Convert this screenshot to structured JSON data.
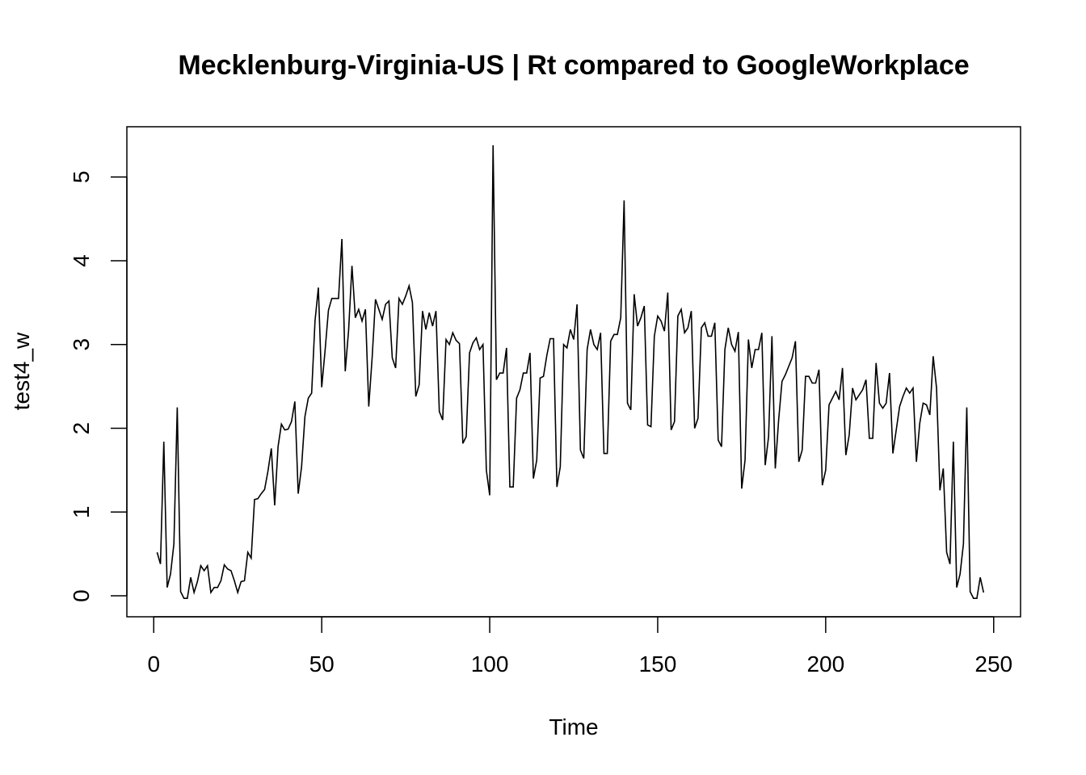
{
  "chart_data": {
    "type": "line",
    "title": "Mecklenburg-Virginia-US | Rt compared to GoogleWorkplace",
    "xlabel": "Time",
    "ylabel": "test4_w",
    "xlim": [
      -8,
      258
    ],
    "ylim": [
      -0.25,
      5.6
    ],
    "x_ticks": [
      0,
      50,
      100,
      150,
      200,
      250
    ],
    "y_ticks": [
      0,
      1,
      2,
      3,
      4,
      5
    ],
    "x_tick_labels": [
      "0",
      "50",
      "100",
      "150",
      "200",
      "250"
    ],
    "y_tick_labels": [
      "0",
      "1",
      "2",
      "3",
      "4",
      "5"
    ],
    "grid": false,
    "legend": "none",
    "line_color": "#000000",
    "series": [
      {
        "x_start": 1,
        "values": [
          0.52,
          0.38,
          1.84,
          0.1,
          0.26,
          0.62,
          2.25,
          0.05,
          -0.03,
          -0.03,
          0.22,
          0.04,
          0.17,
          0.36,
          0.3,
          0.36,
          0.04,
          0.1,
          0.1,
          0.18,
          0.37,
          0.32,
          0.3,
          0.18,
          0.04,
          0.17,
          0.18,
          0.52,
          0.45,
          1.15,
          1.16,
          1.22,
          1.27,
          1.49,
          1.76,
          1.08,
          1.78,
          2.05,
          1.98,
          1.99,
          2.08,
          2.32,
          1.22,
          1.54,
          2.14,
          2.36,
          2.42,
          3.28,
          3.68,
          2.49,
          2.93,
          3.41,
          3.55,
          3.55,
          3.55,
          4.26,
          2.68,
          3.17,
          3.94,
          3.32,
          3.42,
          3.28,
          3.42,
          2.26,
          2.84,
          3.54,
          3.42,
          3.3,
          3.48,
          3.52,
          2.84,
          2.72,
          3.55,
          3.48,
          3.58,
          3.7,
          3.5,
          2.38,
          2.52,
          3.4,
          3.18,
          3.38,
          3.22,
          3.4,
          2.2,
          2.1,
          3.06,
          3.0,
          3.14,
          3.05,
          3.01,
          1.82,
          1.9,
          2.9,
          3.02,
          3.08,
          2.94,
          3.0,
          1.5,
          1.2,
          5.38,
          2.58,
          2.66,
          2.66,
          2.96,
          1.3,
          1.3,
          2.36,
          2.46,
          2.66,
          2.66,
          2.9,
          1.4,
          1.62,
          2.6,
          2.62,
          2.87,
          3.07,
          3.07,
          1.3,
          1.54,
          3.0,
          2.96,
          3.18,
          3.06,
          3.48,
          1.74,
          1.64,
          2.94,
          3.18,
          3.0,
          2.94,
          3.14,
          1.7,
          1.7,
          3.04,
          3.12,
          3.12,
          3.32,
          4.72,
          2.3,
          2.22,
          3.6,
          3.22,
          3.32,
          3.46,
          2.04,
          2.02,
          3.1,
          3.34,
          3.28,
          3.16,
          3.62,
          1.98,
          2.08,
          3.34,
          3.42,
          3.14,
          3.2,
          3.4,
          2.0,
          2.12,
          3.2,
          3.26,
          3.1,
          3.1,
          3.26,
          1.86,
          1.78,
          2.94,
          3.2,
          3.0,
          2.92,
          3.15,
          1.28,
          1.62,
          3.06,
          2.72,
          2.94,
          2.94,
          3.14,
          1.56,
          1.9,
          3.1,
          1.52,
          2.1,
          2.56,
          2.64,
          2.74,
          2.84,
          3.04,
          1.6,
          1.74,
          2.62,
          2.62,
          2.54,
          2.54,
          2.7,
          1.32,
          1.5,
          2.28,
          2.36,
          2.44,
          2.34,
          2.72,
          1.68,
          1.92,
          2.48,
          2.34,
          2.4,
          2.46,
          2.58,
          1.88,
          1.88,
          2.78,
          2.3,
          2.24,
          2.3,
          2.66,
          1.7,
          1.98,
          2.26,
          2.38,
          2.48,
          2.42,
          2.48,
          1.6,
          2.06,
          2.3,
          2.28,
          2.16,
          2.86,
          2.48,
          1.26,
          1.52,
          0.52,
          0.38,
          1.84,
          0.1,
          0.26,
          0.62,
          2.25,
          0.05,
          -0.03,
          -0.03,
          0.22,
          0.04
        ]
      }
    ]
  }
}
